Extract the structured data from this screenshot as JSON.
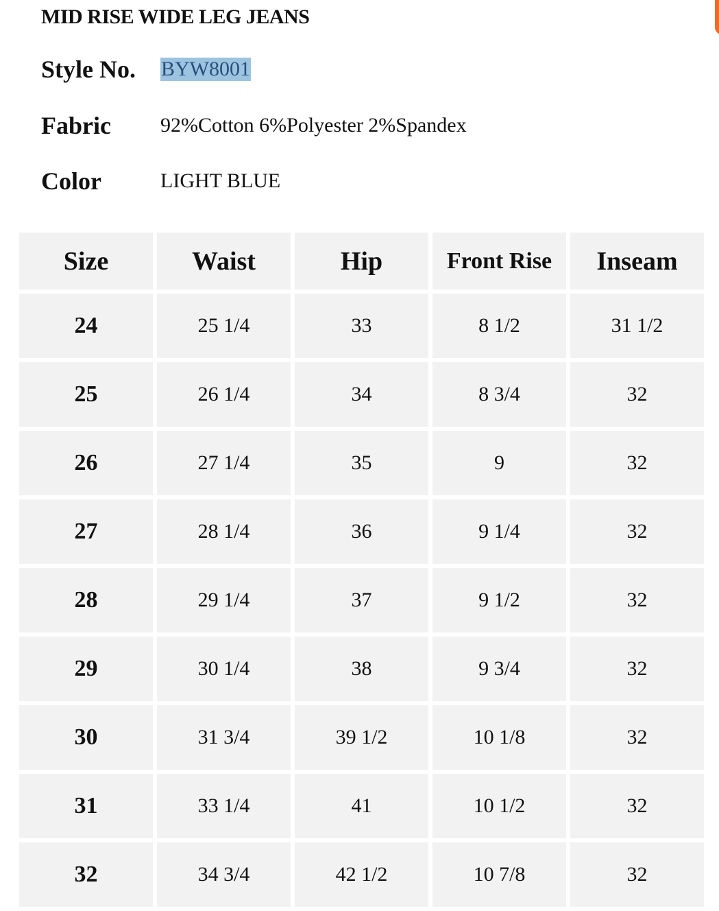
{
  "title": "MID RISE WIDE LEG JEANS",
  "style_label": "Style No.",
  "style_value": "BYW8001",
  "fabric_label": "Fabric",
  "fabric_value": "92%Cotton 6%Polyester 2%Spandex",
  "color_label": "Color",
  "color_value": "LIGHT BLUE",
  "colors": {
    "cell_bg": "#f2f2f2",
    "highlight": "#9cc3e0",
    "accent": "#f06a2a"
  },
  "table": {
    "headers": [
      "Size",
      "Waist",
      "Hip",
      "Front Rise",
      "Inseam"
    ],
    "rows": [
      [
        "24",
        "25 1/4",
        "33",
        "8 1/2",
        "31 1/2"
      ],
      [
        "25",
        "26 1/4",
        "34",
        "8 3/4",
        "32"
      ],
      [
        "26",
        "27 1/4",
        "35",
        "9",
        "32"
      ],
      [
        "27",
        "28 1/4",
        "36",
        "9 1/4",
        "32"
      ],
      [
        "28",
        "29 1/4",
        "37",
        "9 1/2",
        "32"
      ],
      [
        "29",
        "30 1/4",
        "38",
        "9 3/4",
        "32"
      ],
      [
        "30",
        "31 3/4",
        "39 1/2",
        "10 1/8",
        "32"
      ],
      [
        "31",
        "33 1/4",
        "41",
        "10 1/2",
        "32"
      ],
      [
        "32",
        "34 3/4",
        "42 1/2",
        "10 7/8",
        "32"
      ]
    ]
  }
}
